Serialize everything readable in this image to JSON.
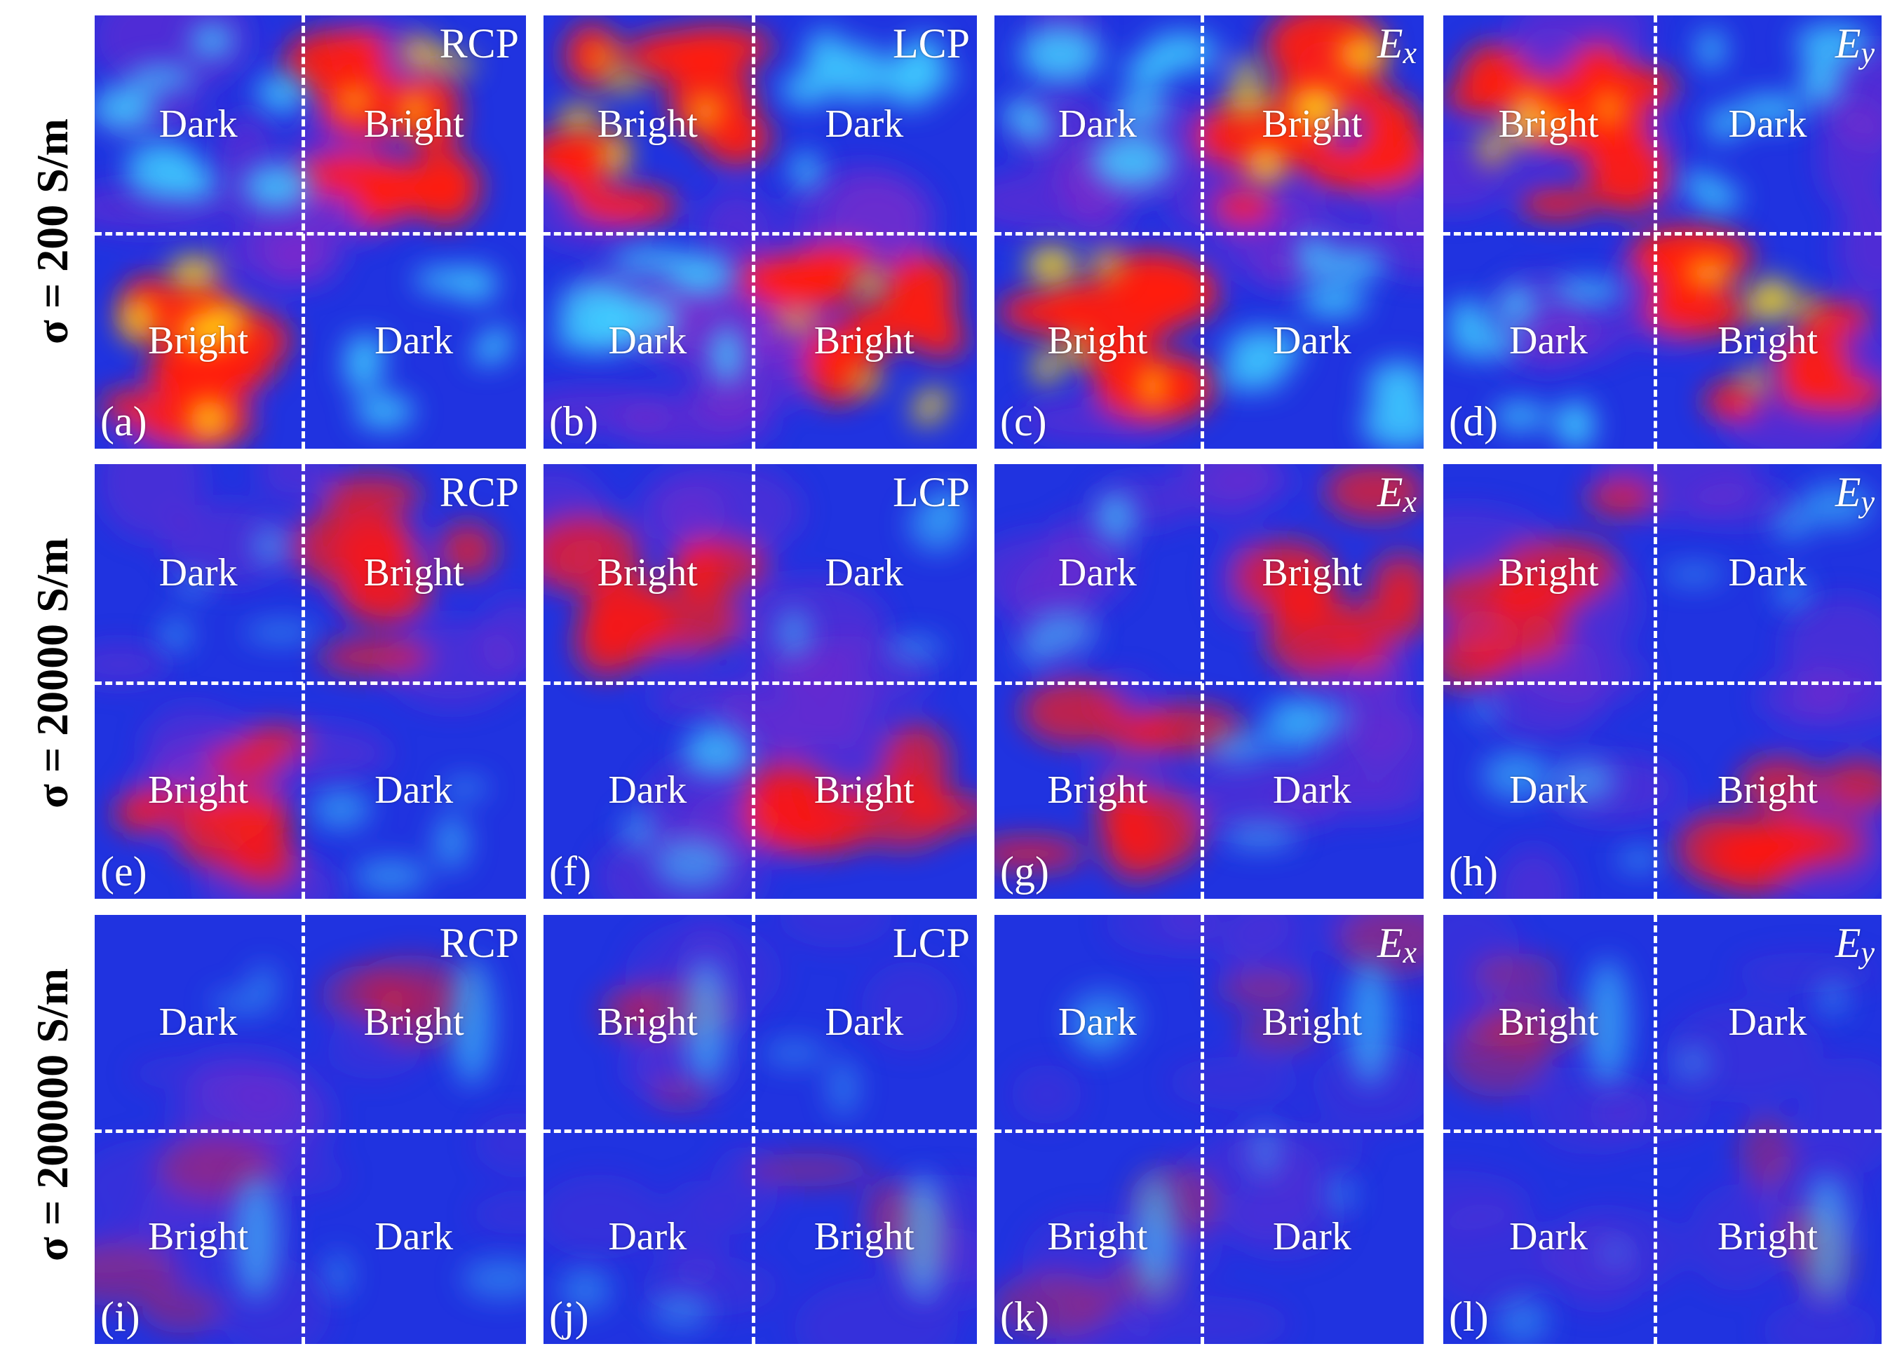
{
  "rows": [
    {
      "label": "σ = 200 S/m",
      "intensity": "high",
      "panels": [
        {
          "id": "(a)",
          "pol_main": "RCP",
          "pol_sub": "",
          "tl": "Dark",
          "tr": "Bright",
          "bl": "Bright",
          "br": "Dark"
        },
        {
          "id": "(b)",
          "pol_main": "LCP",
          "pol_sub": "",
          "tl": "Bright",
          "tr": "Dark",
          "bl": "Dark",
          "br": "Bright"
        },
        {
          "id": "(c)",
          "pol_main": "E",
          "pol_sub": "x",
          "tl": "Dark",
          "tr": "Bright",
          "bl": "Bright",
          "br": "Dark"
        },
        {
          "id": "(d)",
          "pol_main": "E",
          "pol_sub": "y",
          "tl": "Bright",
          "tr": "Dark",
          "bl": "Dark",
          "br": "Bright"
        }
      ]
    },
    {
      "label": "σ = 20000 S/m",
      "intensity": "medium",
      "panels": [
        {
          "id": "(e)",
          "pol_main": "RCP",
          "pol_sub": "",
          "tl": "Dark",
          "tr": "Bright",
          "bl": "Bright",
          "br": "Dark"
        },
        {
          "id": "(f)",
          "pol_main": "LCP",
          "pol_sub": "",
          "tl": "Bright",
          "tr": "Dark",
          "bl": "Dark",
          "br": "Bright"
        },
        {
          "id": "(g)",
          "pol_main": "E",
          "pol_sub": "x",
          "tl": "Dark",
          "tr": "Bright",
          "bl": "Bright",
          "br": "Dark"
        },
        {
          "id": "(h)",
          "pol_main": "E",
          "pol_sub": "y",
          "tl": "Bright",
          "tr": "Dark",
          "bl": "Dark",
          "br": "Bright"
        }
      ]
    },
    {
      "label": "σ = 200000 S/m",
      "intensity": "low",
      "panels": [
        {
          "id": "(i)",
          "pol_main": "RCP",
          "pol_sub": "",
          "tl": "Dark",
          "tr": "Bright",
          "bl": "Bright",
          "br": "Dark"
        },
        {
          "id": "(j)",
          "pol_main": "LCP",
          "pol_sub": "",
          "tl": "Bright",
          "tr": "Dark",
          "bl": "Dark",
          "br": "Bright"
        },
        {
          "id": "(k)",
          "pol_main": "E",
          "pol_sub": "x",
          "tl": "Dark",
          "tr": "Bright",
          "bl": "Bright",
          "br": "Dark"
        },
        {
          "id": "(l)",
          "pol_main": "E",
          "pol_sub": "y",
          "tl": "Bright",
          "tr": "Dark",
          "bl": "Dark",
          "br": "Bright"
        }
      ]
    }
  ],
  "colors": {
    "background_blue": "#2033e0",
    "bright_red": "#ff1a10",
    "hot_yellow": "#ffe010",
    "cyan_highlight": "#40d0ff",
    "divider": "#ffffff"
  }
}
